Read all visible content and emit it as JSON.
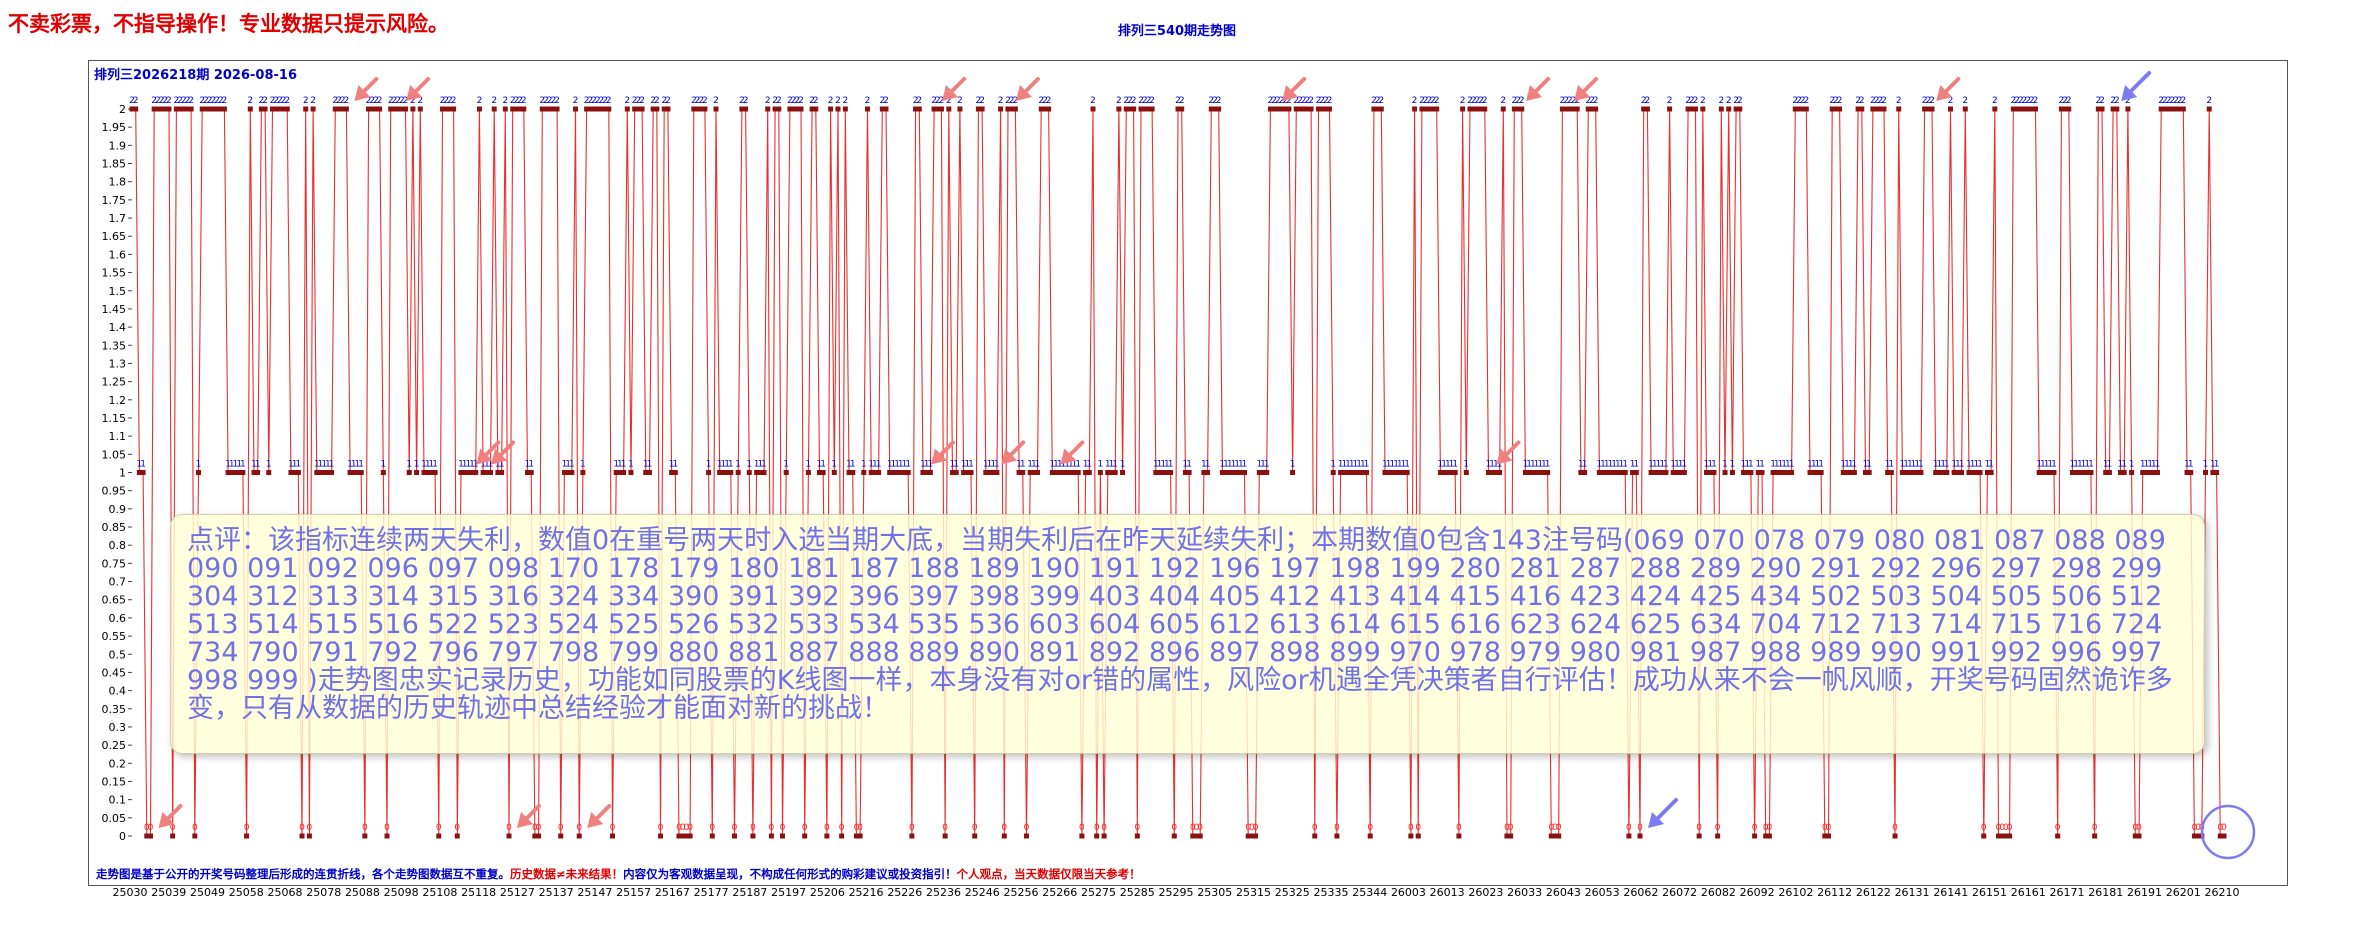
{
  "header": {
    "disclaimer": "不卖彩票，不指导操作！专业数据只提示风险。",
    "title": "排列三540期走势图",
    "period_label": "排列三2026218期  2026-08-16"
  },
  "comment": "点评：该指标连续两天失利，数值0在重号两天时入选当期大底，当期失利后在昨天延续失利；本期数值0包含143注号码(069 070 078 079 080 081 087 088 089 090 091 092 096 097 098 170 178 179 180 181 187 188 189 190 191 192 196 197 198 199 280 281 287 288 289 290 291 292 296 297 298 299 304 312 313 314 315 316 324 334 390 391 392 396 397 398 399 403 404 405 412 413 414 415 416 423 424 425 434 502 503 504 505 506 512 513 514 515 516 522 523 524 525 526 532 533 534 535 536 603 604 605 612 613 614 615 616 623 624 625 634 704 712 713 714 715 716 724 734 790 791 792 796 797 798 799 880 881 887 888 889 890 891 892 896 897 898 899 970 978 979 980 981 987 988 989 990 991 992 996 997 998 999 )走势图忠实记录历史，功能如同股票的K线图一样，本身没有对or错的属性，风险or机遇全凭决策者自行评估！成功从来不会一帆风顺，开奖号码固然诡诈多变，只有从数据的历史轨迹中总结经验才能面对新的挑战！",
  "footer": {
    "part1": "走势图是基于公开的开奖号码整理后形成的连贯折线，各个走势图数据互不重复。",
    "part2": "历史数据≠未来结果！",
    "part3": "内容仅为客观数据呈现，不构成任何形式的购彩建议或投资指引！",
    "part4": "个人观点，当天数据仅限当天参考！"
  },
  "colors": {
    "line": "#e83030",
    "marker": "#8b1010",
    "label_high": "#0000cc",
    "label_mid": "#0000cc",
    "label_zero": "#ff2020",
    "arrow_pink": "#f08080",
    "arrow_blue": "#7c7cf0"
  },
  "chart_data": {
    "type": "line",
    "title": "排列三540期走势图",
    "xlabel": "",
    "ylabel": "",
    "ylim": [
      0,
      2
    ],
    "yticks": [
      0,
      0.05,
      0.1,
      0.15,
      0.2,
      0.25,
      0.3,
      0.35,
      0.4,
      0.45,
      0.5,
      0.55,
      0.6,
      0.65,
      0.7,
      0.75,
      0.8,
      0.85,
      0.9,
      0.95,
      1,
      1.05,
      1.1,
      1.15,
      1.2,
      1.25,
      1.3,
      1.35,
      1.4,
      1.45,
      1.5,
      1.55,
      1.6,
      1.65,
      1.7,
      1.75,
      1.8,
      1.85,
      1.9,
      1.95,
      2
    ],
    "ytick_labels": [
      "0",
      "0.05",
      "0.1",
      "0.15",
      "0.2",
      "0.25",
      "0.3",
      "0.35",
      "0.4",
      "0.45",
      "0.5",
      "0.55",
      "0.6",
      "0.65",
      "0.7",
      "0.75",
      "0.8",
      "0.85",
      "0.9",
      "0.95",
      "1",
      "1.05",
      "1.1",
      "1.15",
      "1.2",
      "1.25",
      "1.3",
      "1.35",
      "1.4",
      "1.45",
      "1.5",
      "1.55",
      "1.6",
      "1.65",
      "1.7",
      "1.75",
      "1.8",
      "1.85",
      "1.9",
      "1.95",
      "2"
    ],
    "x_tick_labels": [
      "25030",
      "25039",
      "25049",
      "25058",
      "25068",
      "25078",
      "25088",
      "25098",
      "25108",
      "25118",
      "25127",
      "25137",
      "25147",
      "25157",
      "25167",
      "25177",
      "25187",
      "25197",
      "25206",
      "25216",
      "25226",
      "25236",
      "25246",
      "25256",
      "25266",
      "25275",
      "25285",
      "25295",
      "25305",
      "25315",
      "25325",
      "25335",
      "25344",
      "26003",
      "26013",
      "26023",
      "26033",
      "26043",
      "26053",
      "26062",
      "26072",
      "26082",
      "26092",
      "26102",
      "26112",
      "26122",
      "26131",
      "26141",
      "26151",
      "26161",
      "26171",
      "26181",
      "26191",
      "26201",
      "26210"
    ],
    "series": [
      {
        "values": [
          2,
          2,
          1,
          1,
          0,
          0,
          2,
          2,
          2,
          2,
          2,
          0,
          2,
          2,
          2,
          2,
          2,
          0,
          1,
          2,
          2,
          2,
          2,
          2,
          2,
          2,
          1,
          1,
          1,
          1,
          1,
          0,
          2,
          1,
          1,
          2,
          2,
          1,
          2,
          2,
          2,
          2,
          2,
          1,
          1,
          1,
          0,
          2,
          0,
          2,
          1,
          1,
          1,
          1,
          1,
          2,
          2,
          2,
          2,
          1,
          1,
          1,
          1,
          0,
          2,
          2,
          2,
          2,
          1,
          0,
          2,
          2,
          2,
          2,
          2,
          1,
          2,
          1,
          2,
          1,
          1,
          1,
          1,
          0,
          2,
          2,
          2,
          2,
          0,
          1,
          1,
          1,
          1,
          1,
          2,
          1,
          1,
          1,
          2,
          1,
          1,
          2,
          0,
          2,
          2,
          2,
          2,
          1,
          1,
          0,
          0,
          2,
          2,
          2,
          2,
          2,
          0,
          1,
          1,
          1,
          2,
          0,
          1,
          2,
          2,
          2,
          2,
          2,
          2,
          2,
          0,
          1,
          1,
          1,
          2,
          1,
          2,
          2,
          2,
          1,
          1,
          2,
          2,
          0,
          2,
          2,
          1,
          1,
          0,
          0,
          0,
          0,
          2,
          2,
          2,
          2,
          1,
          0,
          2,
          1,
          1,
          1,
          1,
          0,
          1,
          2,
          2,
          1,
          0,
          1,
          1,
          1,
          2,
          0,
          2,
          2,
          0,
          1,
          2,
          2,
          2,
          2,
          0,
          1,
          2,
          2,
          1,
          1,
          0,
          2,
          1,
          2,
          0,
          2,
          1,
          1,
          0,
          0,
          1,
          2,
          1,
          1,
          1,
          2,
          2,
          1,
          1,
          1,
          1,
          1,
          1,
          0,
          2,
          2,
          1,
          1,
          1,
          2,
          2,
          2,
          0,
          2,
          1,
          1,
          2,
          1,
          1,
          1,
          0,
          2,
          2,
          1,
          1,
          1,
          1,
          2,
          0,
          2,
          2,
          2,
          1,
          1,
          0,
          1,
          1,
          1,
          2,
          2,
          2,
          1,
          1,
          1,
          1,
          1,
          1,
          1,
          1,
          0,
          1,
          1,
          2,
          0,
          1,
          0,
          1,
          1,
          1,
          2,
          1,
          2,
          2,
          2,
          0,
          2,
          2,
          2,
          2,
          1,
          1,
          1,
          1,
          1,
          0,
          2,
          2,
          1,
          1,
          0,
          0,
          0,
          1,
          1,
          2,
          2,
          2,
          1,
          1,
          1,
          1,
          1,
          1,
          1,
          0,
          0,
          0,
          1,
          1,
          1,
          2,
          2,
          2,
          2,
          2,
          2,
          1,
          2,
          2,
          2,
          2,
          2,
          0,
          2,
          2,
          2,
          2,
          1,
          0,
          1,
          1,
          1,
          1,
          1,
          1,
          1,
          1,
          0,
          2,
          2,
          2,
          1,
          1,
          1,
          1,
          1,
          1,
          1,
          0,
          2,
          0,
          2,
          2,
          2,
          2,
          2,
          1,
          1,
          1,
          1,
          1,
          0,
          2,
          1,
          2,
          2,
          2,
          2,
          2,
          1,
          1,
          1,
          1,
          2,
          0,
          0,
          2,
          2,
          2,
          1,
          1,
          1,
          1,
          1,
          1,
          1,
          0,
          0,
          0,
          2,
          2,
          2,
          2,
          2,
          1,
          1,
          2,
          2,
          2,
          1,
          1,
          1,
          1,
          1,
          1,
          1,
          1,
          0,
          1,
          1,
          0,
          2,
          2,
          1,
          1,
          1,
          1,
          1,
          2,
          1,
          1,
          1,
          1,
          2,
          2,
          2,
          0,
          2,
          1,
          1,
          1,
          0,
          2,
          1,
          2,
          1,
          2,
          2,
          1,
          1,
          1,
          0,
          1,
          1,
          0,
          0,
          1,
          1,
          1,
          1,
          1,
          1,
          2,
          2,
          2,
          2,
          1,
          1,
          1,
          1,
          0,
          0,
          2,
          2,
          2,
          1,
          1,
          1,
          1,
          2,
          2,
          1,
          1,
          2,
          2,
          2,
          2,
          1,
          1,
          0,
          2,
          1,
          1,
          1,
          1,
          1,
          1,
          2,
          2,
          2,
          1,
          1,
          1,
          1,
          2,
          1,
          1,
          1,
          2,
          1,
          1,
          1,
          1,
          0,
          1,
          1,
          2,
          0,
          0,
          0,
          0,
          2,
          2,
          2,
          2,
          2,
          2,
          2,
          1,
          1,
          1,
          1,
          1,
          0,
          2,
          2,
          2,
          1,
          1,
          1,
          1,
          1,
          1,
          0,
          2,
          2,
          1,
          1,
          2,
          2,
          1,
          1,
          2,
          1,
          0,
          0,
          1,
          1,
          1,
          1,
          1,
          2,
          2,
          2,
          2,
          2,
          2,
          2,
          1,
          1,
          0,
          0,
          0,
          1,
          2,
          1,
          1,
          0,
          0
        ]
      }
    ],
    "annotations": {
      "pink_arrow_points": [
        5,
        58,
        72,
        91,
        95,
        102,
        121,
        214,
        217,
        233,
        237,
        249,
        309,
        367,
        375,
        388,
        486
      ],
      "blue_arrow_points": [
        408,
        536
      ]
    }
  }
}
